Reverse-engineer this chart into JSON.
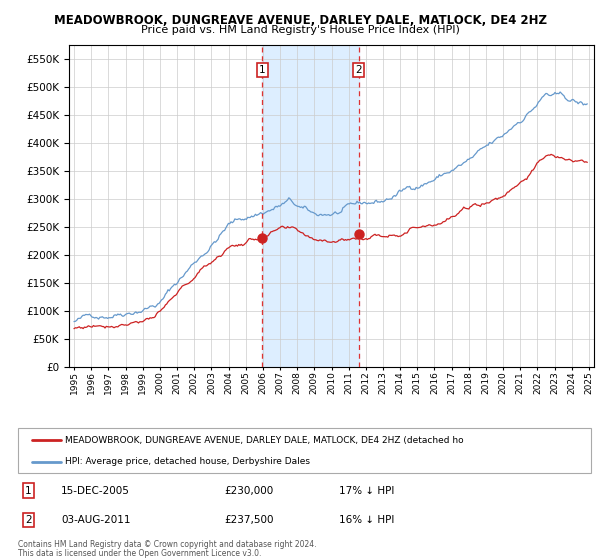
{
  "title": "MEADOWBROOK, DUNGREAVE AVENUE, DARLEY DALE, MATLOCK, DE4 2HZ",
  "subtitle": "Price paid vs. HM Land Registry's House Price Index (HPI)",
  "legend_line1": "MEADOWBROOK, DUNGREAVE AVENUE, DARLEY DALE, MATLOCK, DE4 2HZ (detached ho",
  "legend_line2": "HPI: Average price, detached house, Derbyshire Dales",
  "footer1": "Contains HM Land Registry data © Crown copyright and database right 2024.",
  "footer2": "This data is licensed under the Open Government Licence v3.0.",
  "transaction1": {
    "label": "1",
    "date": "15-DEC-2005",
    "price": "£230,000",
    "hpi_diff": "17% ↓ HPI"
  },
  "transaction2": {
    "label": "2",
    "date": "03-AUG-2011",
    "price": "£237,500",
    "hpi_diff": "16% ↓ HPI"
  },
  "sale1_year": 2005.96,
  "sale2_year": 2011.59,
  "sale1_price": 230000,
  "sale2_price": 237500,
  "hpi_color": "#6699cc",
  "price_color": "#cc2222",
  "sale_dot_color": "#cc2222",
  "shading_color": "#ddeeff",
  "vline_color": "#dd3333",
  "ylim": [
    0,
    575000
  ],
  "yticks": [
    0,
    50000,
    100000,
    150000,
    200000,
    250000,
    300000,
    350000,
    400000,
    450000,
    500000,
    550000
  ],
  "xlim_start": 1994.7,
  "xlim_end": 2025.3,
  "background_color": "#ffffff",
  "plot_bg_color": "#ffffff",
  "grid_color": "#cccccc",
  "label_box_color": "#cc2222"
}
